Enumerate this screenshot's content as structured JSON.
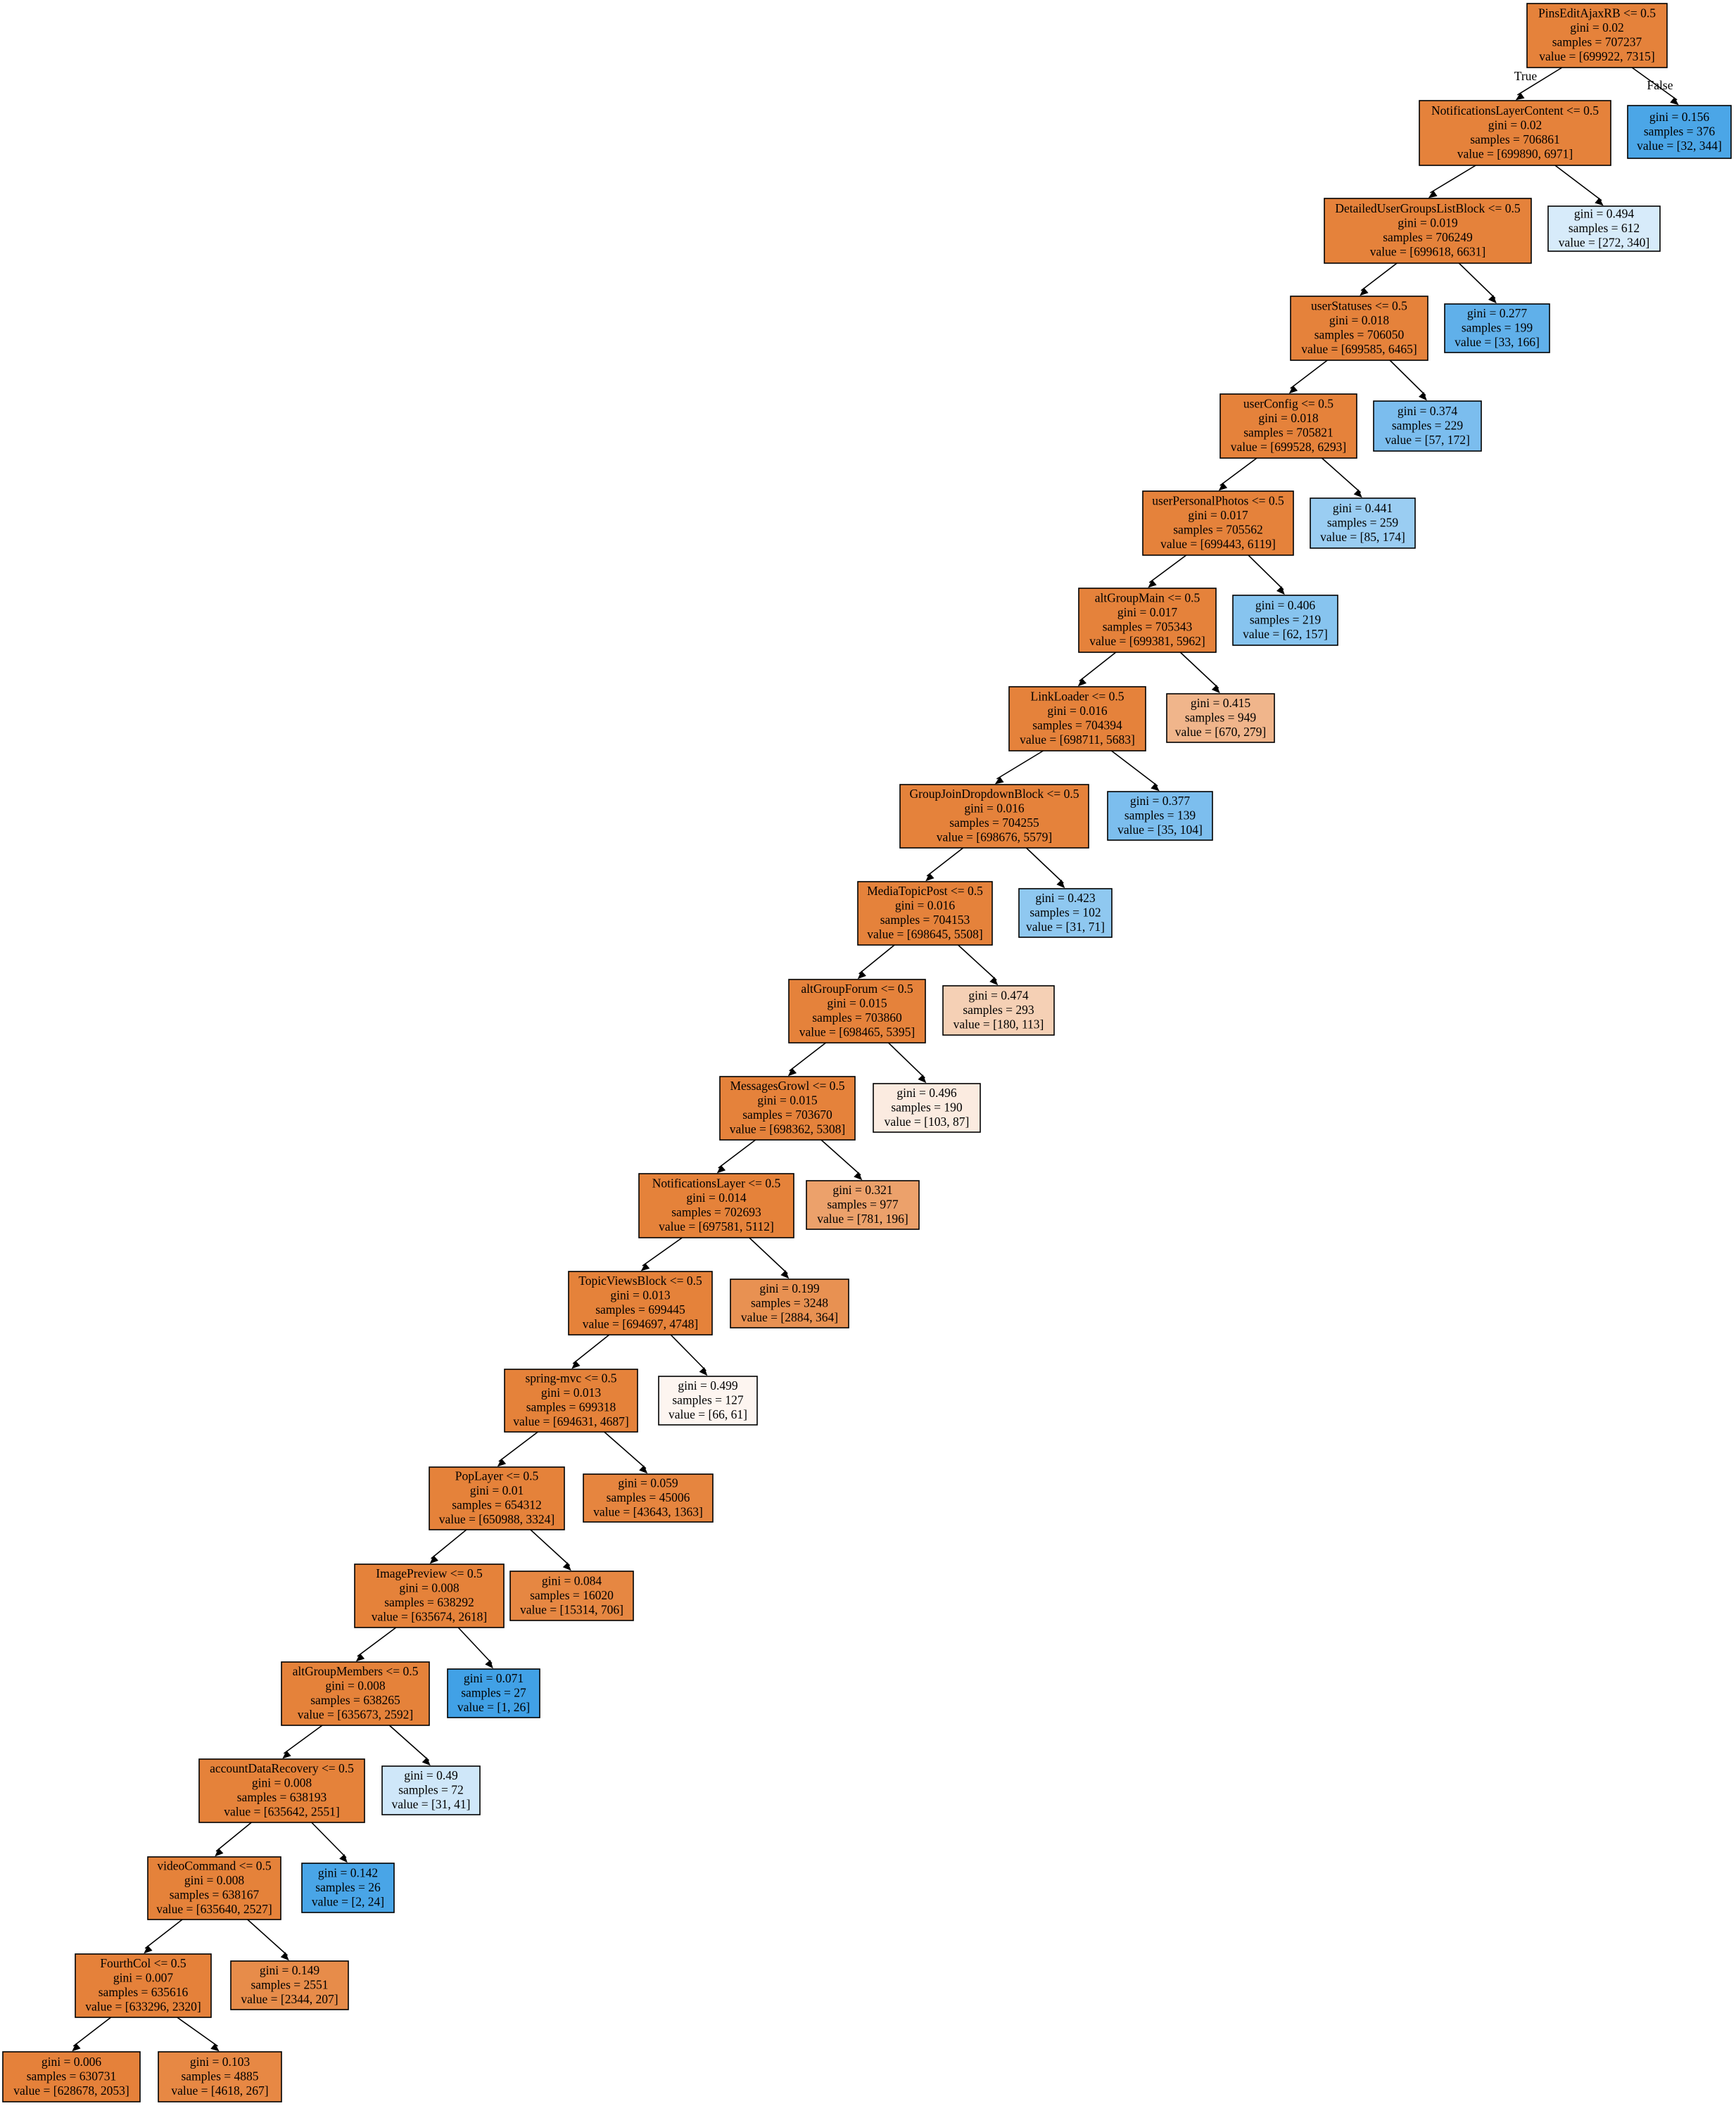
{
  "colors": {
    "class0": "#e58139",
    "class1": "#399de5",
    "border": "#000000"
  },
  "edge_labels": {
    "true": "True",
    "false": "False"
  },
  "nodes": [
    {
      "id": "n0",
      "cond": "PinsEditAjaxRB <= 0.5",
      "gini": "gini = 0.02",
      "samples": "samples = 707237",
      "value": "value = [699922, 7315]",
      "v0": 699922,
      "v1": 7315
    },
    {
      "id": "n1",
      "cond": "NotificationsLayerContent <= 0.5",
      "gini": "gini = 0.02",
      "samples": "samples = 706861",
      "value": "value = [699890, 6971]",
      "v0": 699890,
      "v1": 6971
    },
    {
      "id": "n2",
      "cond": "",
      "gini": "gini = 0.156",
      "samples": "samples = 376",
      "value": "value = [32, 344]",
      "v0": 32,
      "v1": 344
    },
    {
      "id": "n3",
      "cond": "DetailedUserGroupsListBlock <= 0.5",
      "gini": "gini = 0.019",
      "samples": "samples = 706249",
      "value": "value = [699618, 6631]",
      "v0": 699618,
      "v1": 6631
    },
    {
      "id": "n4",
      "cond": "",
      "gini": "gini = 0.494",
      "samples": "samples = 612",
      "value": "value = [272, 340]",
      "v0": 272,
      "v1": 340
    },
    {
      "id": "n5",
      "cond": "userStatuses <= 0.5",
      "gini": "gini = 0.018",
      "samples": "samples = 706050",
      "value": "value = [699585, 6465]",
      "v0": 699585,
      "v1": 6465
    },
    {
      "id": "n6",
      "cond": "",
      "gini": "gini = 0.277",
      "samples": "samples = 199",
      "value": "value = [33, 166]",
      "v0": 33,
      "v1": 166
    },
    {
      "id": "n7",
      "cond": "userConfig <= 0.5",
      "gini": "gini = 0.018",
      "samples": "samples = 705821",
      "value": "value = [699528, 6293]",
      "v0": 699528,
      "v1": 6293
    },
    {
      "id": "n8",
      "cond": "",
      "gini": "gini = 0.374",
      "samples": "samples = 229",
      "value": "value = [57, 172]",
      "v0": 57,
      "v1": 172
    },
    {
      "id": "n9",
      "cond": "userPersonalPhotos <= 0.5",
      "gini": "gini = 0.017",
      "samples": "samples = 705562",
      "value": "value = [699443, 6119]",
      "v0": 699443,
      "v1": 6119
    },
    {
      "id": "n10",
      "cond": "",
      "gini": "gini = 0.441",
      "samples": "samples = 259",
      "value": "value = [85, 174]",
      "v0": 85,
      "v1": 174
    },
    {
      "id": "n11",
      "cond": "altGroupMain <= 0.5",
      "gini": "gini = 0.017",
      "samples": "samples = 705343",
      "value": "value = [699381, 5962]",
      "v0": 699381,
      "v1": 5962
    },
    {
      "id": "n12",
      "cond": "",
      "gini": "gini = 0.406",
      "samples": "samples = 219",
      "value": "value = [62, 157]",
      "v0": 62,
      "v1": 157
    },
    {
      "id": "n13",
      "cond": "LinkLoader <= 0.5",
      "gini": "gini = 0.016",
      "samples": "samples = 704394",
      "value": "value = [698711, 5683]",
      "v0": 698711,
      "v1": 5683
    },
    {
      "id": "n14",
      "cond": "",
      "gini": "gini = 0.415",
      "samples": "samples = 949",
      "value": "value = [670, 279]",
      "v0": 670,
      "v1": 279
    },
    {
      "id": "n15",
      "cond": "GroupJoinDropdownBlock <= 0.5",
      "gini": "gini = 0.016",
      "samples": "samples = 704255",
      "value": "value = [698676, 5579]",
      "v0": 698676,
      "v1": 5579
    },
    {
      "id": "n16",
      "cond": "",
      "gini": "gini = 0.377",
      "samples": "samples = 139",
      "value": "value = [35, 104]",
      "v0": 35,
      "v1": 104
    },
    {
      "id": "n17",
      "cond": "MediaTopicPost <= 0.5",
      "gini": "gini = 0.016",
      "samples": "samples = 704153",
      "value": "value = [698645, 5508]",
      "v0": 698645,
      "v1": 5508
    },
    {
      "id": "n18",
      "cond": "",
      "gini": "gini = 0.423",
      "samples": "samples = 102",
      "value": "value = [31, 71]",
      "v0": 31,
      "v1": 71
    },
    {
      "id": "n19",
      "cond": "altGroupForum <= 0.5",
      "gini": "gini = 0.015",
      "samples": "samples = 703860",
      "value": "value = [698465, 5395]",
      "v0": 698465,
      "v1": 5395
    },
    {
      "id": "n20",
      "cond": "",
      "gini": "gini = 0.474",
      "samples": "samples = 293",
      "value": "value = [180, 113]",
      "v0": 180,
      "v1": 113
    },
    {
      "id": "n21",
      "cond": "MessagesGrowl <= 0.5",
      "gini": "gini = 0.015",
      "samples": "samples = 703670",
      "value": "value = [698362, 5308]",
      "v0": 698362,
      "v1": 5308
    },
    {
      "id": "n22",
      "cond": "",
      "gini": "gini = 0.496",
      "samples": "samples = 190",
      "value": "value = [103, 87]",
      "v0": 103,
      "v1": 87
    },
    {
      "id": "n23",
      "cond": "NotificationsLayer <= 0.5",
      "gini": "gini = 0.014",
      "samples": "samples = 702693",
      "value": "value = [697581, 5112]",
      "v0": 697581,
      "v1": 5112
    },
    {
      "id": "n24",
      "cond": "",
      "gini": "gini = 0.321",
      "samples": "samples = 977",
      "value": "value = [781, 196]",
      "v0": 781,
      "v1": 196
    },
    {
      "id": "n25",
      "cond": "TopicViewsBlock <= 0.5",
      "gini": "gini = 0.013",
      "samples": "samples = 699445",
      "value": "value = [694697, 4748]",
      "v0": 694697,
      "v1": 4748
    },
    {
      "id": "n26",
      "cond": "",
      "gini": "gini = 0.199",
      "samples": "samples = 3248",
      "value": "value = [2884, 364]",
      "v0": 2884,
      "v1": 364
    },
    {
      "id": "n27",
      "cond": "spring-mvc <= 0.5",
      "gini": "gini = 0.013",
      "samples": "samples = 699318",
      "value": "value = [694631, 4687]",
      "v0": 694631,
      "v1": 4687
    },
    {
      "id": "n28",
      "cond": "",
      "gini": "gini = 0.499",
      "samples": "samples = 127",
      "value": "value = [66, 61]",
      "v0": 66,
      "v1": 61
    },
    {
      "id": "n29",
      "cond": "PopLayer <= 0.5",
      "gini": "gini = 0.01",
      "samples": "samples = 654312",
      "value": "value = [650988, 3324]",
      "v0": 650988,
      "v1": 3324
    },
    {
      "id": "n30",
      "cond": "",
      "gini": "gini = 0.059",
      "samples": "samples = 45006",
      "value": "value = [43643, 1363]",
      "v0": 43643,
      "v1": 1363
    },
    {
      "id": "n31",
      "cond": "ImagePreview <= 0.5",
      "gini": "gini = 0.008",
      "samples": "samples = 638292",
      "value": "value = [635674, 2618]",
      "v0": 635674,
      "v1": 2618
    },
    {
      "id": "n32",
      "cond": "",
      "gini": "gini = 0.084",
      "samples": "samples = 16020",
      "value": "value = [15314, 706]",
      "v0": 15314,
      "v1": 706
    },
    {
      "id": "n33",
      "cond": "altGroupMembers <= 0.5",
      "gini": "gini = 0.008",
      "samples": "samples = 638265",
      "value": "value = [635673, 2592]",
      "v0": 635673,
      "v1": 2592
    },
    {
      "id": "n34",
      "cond": "",
      "gini": "gini = 0.071",
      "samples": "samples = 27",
      "value": "value = [1, 26]",
      "v0": 1,
      "v1": 26
    },
    {
      "id": "n35",
      "cond": "accountDataRecovery <= 0.5",
      "gini": "gini = 0.008",
      "samples": "samples = 638193",
      "value": "value = [635642, 2551]",
      "v0": 635642,
      "v1": 2551
    },
    {
      "id": "n36",
      "cond": "",
      "gini": "gini = 0.49",
      "samples": "samples = 72",
      "value": "value = [31, 41]",
      "v0": 31,
      "v1": 41
    },
    {
      "id": "n37",
      "cond": "videoCommand <= 0.5",
      "gini": "gini = 0.008",
      "samples": "samples = 638167",
      "value": "value = [635640, 2527]",
      "v0": 635640,
      "v1": 2527
    },
    {
      "id": "n38",
      "cond": "",
      "gini": "gini = 0.142",
      "samples": "samples = 26",
      "value": "value = [2, 24]",
      "v0": 2,
      "v1": 24
    },
    {
      "id": "n39",
      "cond": "FourthCol <= 0.5",
      "gini": "gini = 0.007",
      "samples": "samples = 635616",
      "value": "value = [633296, 2320]",
      "v0": 633296,
      "v1": 2320
    },
    {
      "id": "n40",
      "cond": "",
      "gini": "gini = 0.149",
      "samples": "samples = 2551",
      "value": "value = [2344, 207]",
      "v0": 2344,
      "v1": 207
    },
    {
      "id": "n41",
      "cond": "",
      "gini": "gini = 0.006",
      "samples": "samples = 630731",
      "value": "value = [628678, 2053]",
      "v0": 628678,
      "v1": 2053
    },
    {
      "id": "n42",
      "cond": "",
      "gini": "gini = 0.103",
      "samples": "samples = 4885",
      "value": "value = [4618, 267]",
      "v0": 4618,
      "v1": 267
    }
  ],
  "edges": [
    [
      "n0",
      "n1"
    ],
    [
      "n0",
      "n2"
    ],
    [
      "n1",
      "n3"
    ],
    [
      "n1",
      "n4"
    ],
    [
      "n3",
      "n5"
    ],
    [
      "n3",
      "n6"
    ],
    [
      "n5",
      "n7"
    ],
    [
      "n5",
      "n8"
    ],
    [
      "n7",
      "n9"
    ],
    [
      "n7",
      "n10"
    ],
    [
      "n9",
      "n11"
    ],
    [
      "n9",
      "n12"
    ],
    [
      "n11",
      "n13"
    ],
    [
      "n11",
      "n14"
    ],
    [
      "n13",
      "n15"
    ],
    [
      "n13",
      "n16"
    ],
    [
      "n15",
      "n17"
    ],
    [
      "n15",
      "n18"
    ],
    [
      "n17",
      "n19"
    ],
    [
      "n17",
      "n20"
    ],
    [
      "n19",
      "n21"
    ],
    [
      "n19",
      "n22"
    ],
    [
      "n21",
      "n23"
    ],
    [
      "n21",
      "n24"
    ],
    [
      "n23",
      "n25"
    ],
    [
      "n23",
      "n26"
    ],
    [
      "n25",
      "n27"
    ],
    [
      "n25",
      "n28"
    ],
    [
      "n27",
      "n29"
    ],
    [
      "n27",
      "n30"
    ],
    [
      "n29",
      "n31"
    ],
    [
      "n29",
      "n32"
    ],
    [
      "n31",
      "n33"
    ],
    [
      "n31",
      "n34"
    ],
    [
      "n33",
      "n35"
    ],
    [
      "n33",
      "n36"
    ],
    [
      "n35",
      "n37"
    ],
    [
      "n35",
      "n38"
    ],
    [
      "n37",
      "n39"
    ],
    [
      "n37",
      "n40"
    ],
    [
      "n39",
      "n41"
    ],
    [
      "n39",
      "n42"
    ]
  ]
}
